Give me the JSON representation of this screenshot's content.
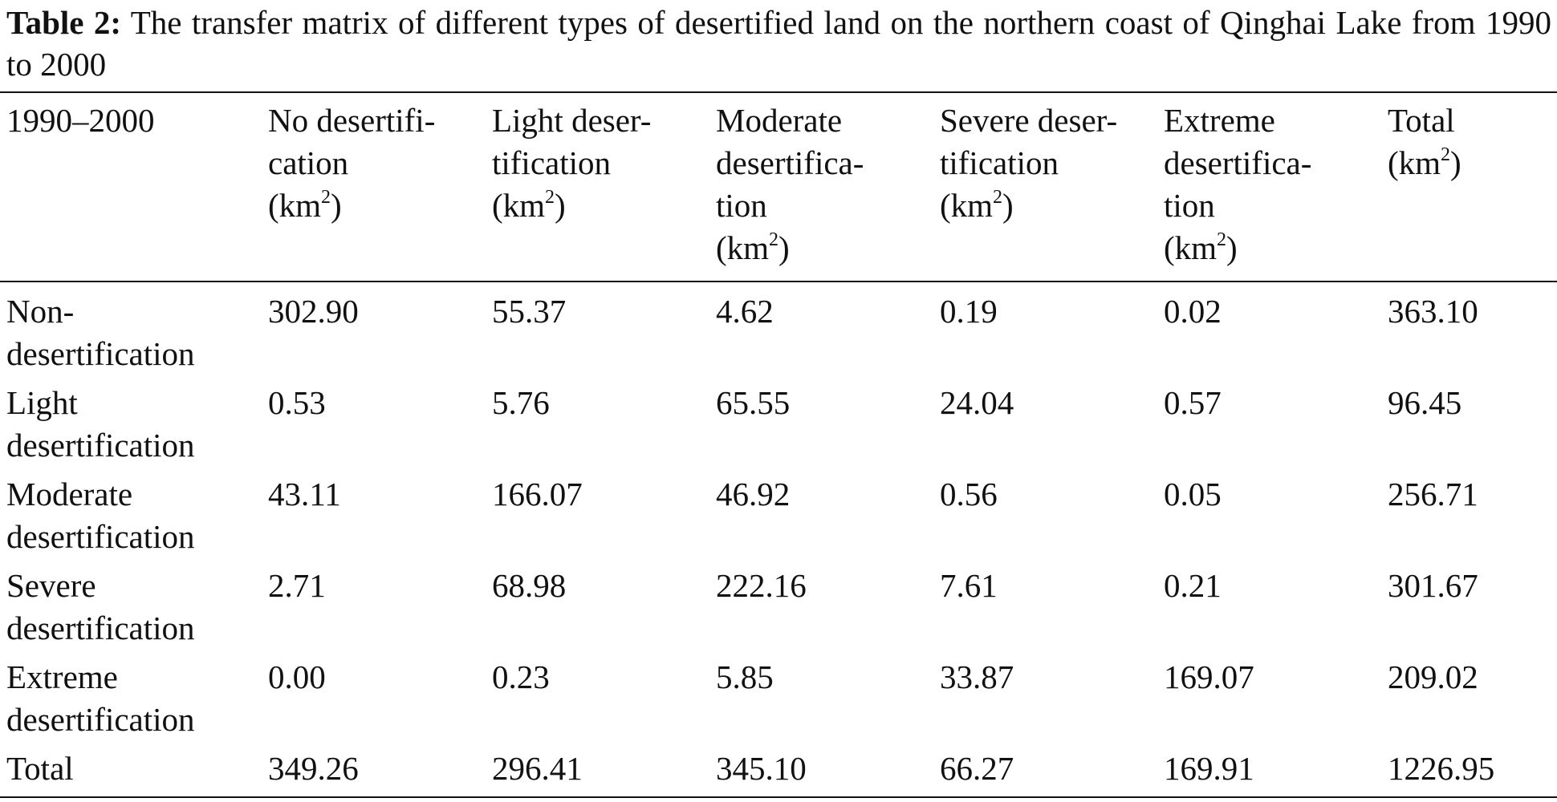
{
  "caption": {
    "label": "Table 2:",
    "text": " The transfer matrix of different types of desertified land on the northern coast of Qinghai Lake from 1990 to 2000"
  },
  "table": {
    "header": {
      "row_label": "1990–2000",
      "columns": [
        {
          "text": "No desertifi-\ncation\n(km",
          "sup": "2",
          "tail": ")"
        },
        {
          "text": "Light deser-\ntification\n(km",
          "sup": "2",
          "tail": ")"
        },
        {
          "text": "Moderate\ndesertifica-\ntion\n(km",
          "sup": "2",
          "tail": ")"
        },
        {
          "text": "Severe deser-\ntification\n(km",
          "sup": "2",
          "tail": ")"
        },
        {
          "text": "Extreme\ndesertifica-\ntion\n(km",
          "sup": "2",
          "tail": ")"
        },
        {
          "text": "Total\n(km",
          "sup": "2",
          "tail": ")"
        }
      ]
    },
    "rows": [
      {
        "label": "Non-\ndesertification",
        "values": [
          "302.90",
          "55.37",
          "4.62",
          "0.19",
          "0.02",
          "363.10"
        ]
      },
      {
        "label": "Light\ndesertification",
        "values": [
          "0.53",
          "5.76",
          "65.55",
          "24.04",
          "0.57",
          "96.45"
        ]
      },
      {
        "label": "Moderate\ndesertification",
        "values": [
          "43.11",
          "166.07",
          "46.92",
          "0.56",
          "0.05",
          "256.71"
        ]
      },
      {
        "label": "Severe\ndesertification",
        "values": [
          "2.71",
          "68.98",
          "222.16",
          "7.61",
          "0.21",
          "301.67"
        ]
      },
      {
        "label": "Extreme\ndesertification",
        "values": [
          "0.00",
          "0.23",
          "5.85",
          "33.87",
          "169.07",
          "209.02"
        ]
      },
      {
        "label": "Total",
        "values": [
          "349.26",
          "296.41",
          "345.10",
          "66.27",
          "169.91",
          "1226.95"
        ]
      }
    ]
  }
}
